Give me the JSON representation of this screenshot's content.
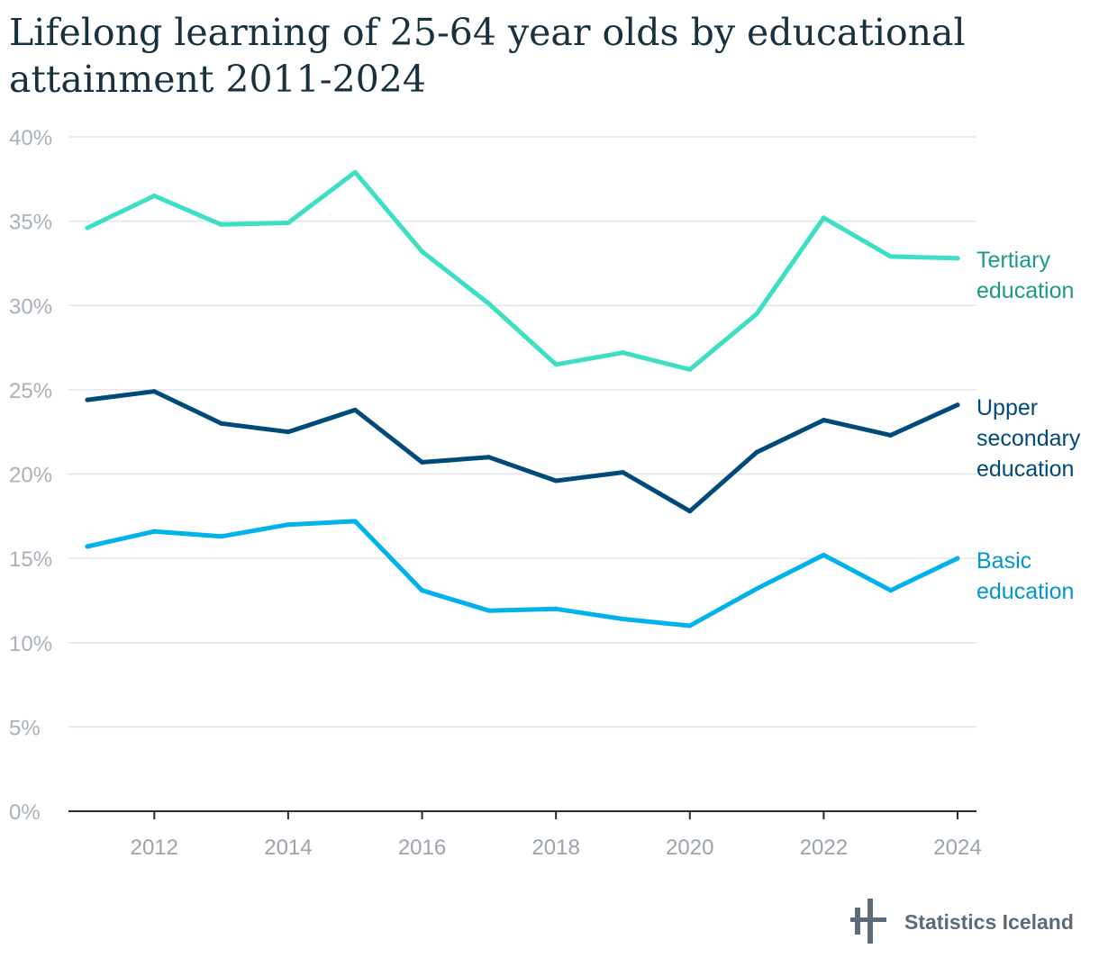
{
  "title": "Lifelong learning of 25-64 year olds by educational attainment 2011-2024",
  "source_logo_text": "Statistics Iceland",
  "chart_data": {
    "type": "line",
    "title": "Lifelong learning of 25-64 year olds by educational attainment 2011-2024",
    "x": [
      2011,
      2012,
      2013,
      2014,
      2015,
      2016,
      2017,
      2018,
      2019,
      2020,
      2021,
      2022,
      2023,
      2024
    ],
    "x_ticks": [
      2012,
      2014,
      2016,
      2018,
      2020,
      2022,
      2024
    ],
    "x_tick_labels": [
      "2012",
      "2014",
      "2016",
      "2018",
      "2020",
      "2022",
      "2024"
    ],
    "ylim": [
      0,
      40
    ],
    "y_ticks": [
      0,
      5,
      10,
      15,
      20,
      25,
      30,
      35,
      40
    ],
    "y_tick_labels": [
      "0%",
      "5%",
      "10%",
      "15%",
      "20%",
      "25%",
      "30%",
      "35%",
      "40%"
    ],
    "grid": true,
    "legend": "inline-right",
    "series": [
      {
        "name": "Tertiary education",
        "label_lines": [
          "Tertiary",
          "education"
        ],
        "color": "#3ddfc4",
        "label_color": "#1a9a80",
        "values": [
          34.6,
          36.5,
          34.8,
          34.9,
          37.9,
          33.2,
          30.1,
          26.5,
          27.2,
          26.2,
          29.5,
          35.2,
          32.9,
          32.8
        ]
      },
      {
        "name": "Upper secondary education",
        "label_lines": [
          "Upper",
          "secondary",
          "education"
        ],
        "color": "#004a7a",
        "label_color": "#004a7a",
        "values": [
          24.4,
          24.9,
          23.0,
          22.5,
          23.8,
          20.7,
          21.0,
          19.6,
          20.1,
          17.8,
          21.3,
          23.2,
          22.3,
          24.1
        ]
      },
      {
        "name": "Basic education",
        "label_lines": [
          "Basic",
          "education"
        ],
        "color": "#00b2ec",
        "label_color": "#0096cc",
        "values": [
          15.7,
          16.6,
          16.3,
          17.0,
          17.2,
          13.1,
          11.9,
          12.0,
          11.4,
          11.0,
          13.2,
          15.2,
          13.1,
          15.0
        ]
      }
    ]
  }
}
